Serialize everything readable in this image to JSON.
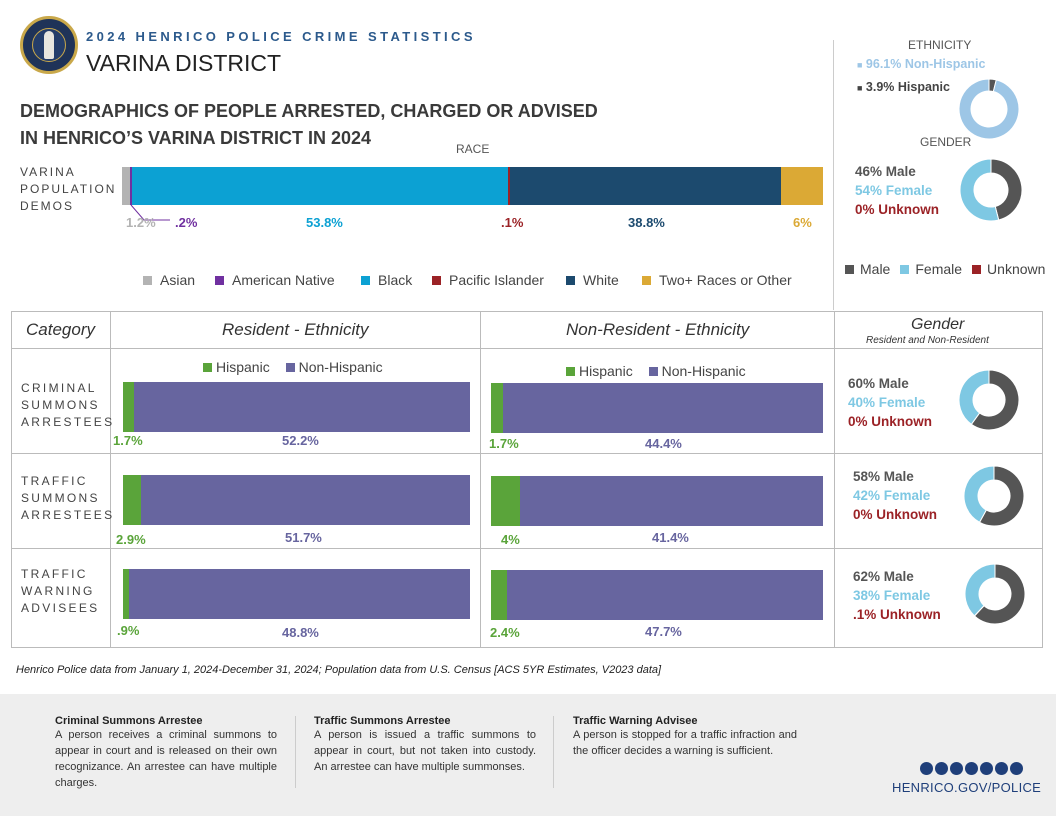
{
  "header": {
    "top_title": "2024 HENRICO POLICE CRIME STATISTICS",
    "district": "VARINA DISTRICT",
    "headline_line1": "DEMOGRAPHICS OF PEOPLE ARRESTED, CHARGED OR ADVISED",
    "headline_line2": "IN HENRICO’S VARINA DISTRICT IN 2024"
  },
  "population": {
    "race_title": "RACE",
    "label_lines": [
      "VARINA",
      "POPULATION",
      "DEMOS"
    ],
    "segments": [
      {
        "name": "Asian",
        "label": "1.2%",
        "value": 1.2,
        "color": "#b3b3b3"
      },
      {
        "name": "American Native",
        "label": ".2%",
        "value": 0.2,
        "color": "#7030a0"
      },
      {
        "name": "Black",
        "label": "53.8%",
        "value": 53.8,
        "color": "#0ca1d3"
      },
      {
        "name": "Pacific Islander",
        "label": ".1%",
        "value": 0.1,
        "color": "#9b2226"
      },
      {
        "name": "White",
        "label": "38.8%",
        "value": 38.8,
        "color": "#1c4a6e"
      },
      {
        "name": "Two+ Races or Other",
        "label": "6%",
        "value": 6,
        "color": "#dba935"
      }
    ],
    "legend": [
      "Asian",
      "American Native",
      "Black",
      "Pacific Islander",
      "White",
      "Two+ Races or Other"
    ]
  },
  "overall_ethnicity": {
    "title": "ETHNICITY",
    "non_hispanic": "96.1% Non-Hispanic",
    "hispanic": "3.9% Hispanic",
    "non_hispanic_value": 96.1,
    "hispanic_value": 3.9,
    "color_non_hispanic": "#9dc6e6",
    "color_hispanic": "#555555"
  },
  "overall_gender": {
    "title": "GENDER",
    "male": "46% Male",
    "female": "54% Female",
    "unknown": "0% Unknown",
    "male_value": 46,
    "female_value": 54,
    "unknown_value": 0,
    "legend": [
      "Male",
      "Female",
      "Unknown"
    ]
  },
  "colors": {
    "male": "#555555",
    "female": "#7ec8e3",
    "unknown": "#9b2226",
    "hispanic": "#5aa43a",
    "non_hispanic": "#67659f"
  },
  "table": {
    "headers": {
      "category": "Category",
      "resident": "Resident - Ethnicity",
      "non_resident": "Non-Resident - Ethnicity",
      "gender": "Gender",
      "gender_sub": "Resident and Non-Resident"
    },
    "legend": {
      "hispanic": "Hispanic",
      "non_hispanic": "Non-Hispanic"
    },
    "rows": [
      {
        "category_lines": [
          "CRIMINAL",
          "SUMMONS",
          "ARRESTEES"
        ],
        "resident": {
          "hispanic_label": "1.7%",
          "hispanic": 1.7,
          "non_hispanic_label": "52.2%",
          "non_hispanic": 52.2
        },
        "non_resident": {
          "hispanic_label": "1.7%",
          "hispanic": 1.7,
          "non_hispanic_label": "44.4%",
          "non_hispanic": 44.4
        },
        "gender": {
          "male": "60% Male",
          "female": "40% Female",
          "unknown": "0% Unknown",
          "male_value": 60,
          "female_value": 40,
          "unknown_value": 0
        }
      },
      {
        "category_lines": [
          "TRAFFIC",
          "SUMMONS",
          "ARRESTEES"
        ],
        "resident": {
          "hispanic_label": "2.9%",
          "hispanic": 2.9,
          "non_hispanic_label": "51.7%",
          "non_hispanic": 51.7
        },
        "non_resident": {
          "hispanic_label": "4%",
          "hispanic": 4,
          "non_hispanic_label": "41.4%",
          "non_hispanic": 41.4
        },
        "gender": {
          "male": "58% Male",
          "female": "42% Female",
          "unknown": "0% Unknown",
          "male_value": 58,
          "female_value": 42,
          "unknown_value": 0
        }
      },
      {
        "category_lines": [
          "TRAFFIC",
          "WARNING",
          "ADVISEES"
        ],
        "resident": {
          "hispanic_label": ".9%",
          "hispanic": 0.9,
          "non_hispanic_label": "48.8%",
          "non_hispanic": 48.8
        },
        "non_resident": {
          "hispanic_label": "2.4%",
          "hispanic": 2.4,
          "non_hispanic_label": "47.7%",
          "non_hispanic": 47.7
        },
        "gender": {
          "male": "62% Male",
          "female": "38% Female",
          "unknown": ".1% Unknown",
          "male_value": 62,
          "female_value": 38,
          "unknown_value": 0.1
        }
      }
    ]
  },
  "footnote": "Henrico Police data from January 1, 2024-December 31, 2024; Population data from U.S. Census [ACS 5YR Estimates, V2023 data]",
  "definitions": [
    {
      "title": "Criminal Summons Arrestee",
      "body": "A person receives a criminal summons to appear in court and is released on their own recognizance. An arrestee can have multiple charges."
    },
    {
      "title": "Traffic Summons Arrestee",
      "body": "A person is issued a traffic summons to appear in court, but not taken into custody. An arrestee can have multiple summonses."
    },
    {
      "title": "Traffic Warning Advisee",
      "body": "A person is stopped for a traffic infraction and the officer decides a warning is sufficient."
    }
  ],
  "social": [
    "facebook-icon",
    "instagram-icon",
    "x-icon",
    "threads-icon",
    "nextdoor-icon",
    "youtube-icon",
    "linkedin-icon"
  ],
  "website": "HENRICO.GOV/POLICE"
}
